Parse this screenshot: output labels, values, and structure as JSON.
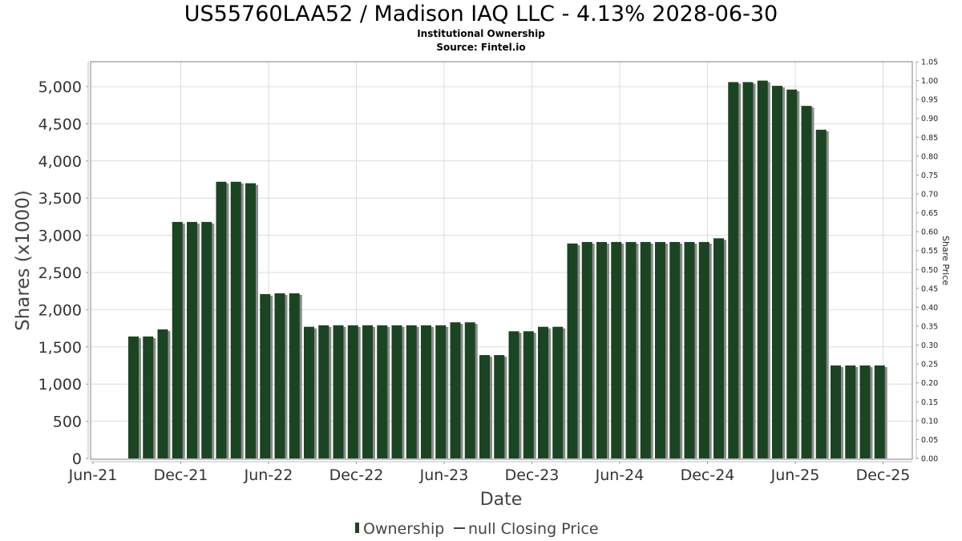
{
  "chart_data": {
    "type": "bar",
    "title": "US55760LAA52 / Madison IAQ LLC - 4.13% 2028-06-30",
    "subtitle": "Institutional Ownership",
    "source": "Source: Fintel.io",
    "xlabel": "Date",
    "ylabel": "Shares (x1000)",
    "y2label": "Share Price",
    "ylim": [
      0,
      5333
    ],
    "y2lim": [
      0,
      1.05
    ],
    "yticks": [
      0,
      500,
      1000,
      1500,
      2000,
      2500,
      3000,
      3500,
      4000,
      4500,
      5000
    ],
    "ytick_labels": [
      "0",
      "500",
      "1,000",
      "1,500",
      "2,000",
      "2,500",
      "3,000",
      "3,500",
      "4,000",
      "4,500",
      "5,000"
    ],
    "y2tick_labels": [
      "0.00",
      "0.05",
      "0.10",
      "0.15",
      "0.20",
      "0.25",
      "0.30",
      "0.35",
      "0.40",
      "0.45",
      "0.50",
      "0.55",
      "0.60",
      "0.65",
      "0.70",
      "0.75",
      "0.80",
      "0.85",
      "0.90",
      "0.95",
      "1.00",
      "1.05"
    ],
    "xtick_labels": [
      "Jun-21",
      "Dec-21",
      "Jun-22",
      "Dec-22",
      "Jun-23",
      "Dec-23",
      "Jun-24",
      "Dec-24",
      "Jun-25",
      "Dec-25"
    ],
    "grid": true,
    "legend_position": "bottom",
    "series": [
      {
        "name": "Ownership",
        "color": "#1b4522",
        "values": [
          1640,
          1640,
          1735,
          3180,
          3180,
          3180,
          3720,
          3720,
          3700,
          2210,
          2220,
          2220,
          1770,
          1790,
          1790,
          1790,
          1790,
          1790,
          1790,
          1790,
          1790,
          1790,
          1830,
          1830,
          1390,
          1390,
          1710,
          1710,
          1770,
          1770,
          2890,
          2910,
          2910,
          2910,
          2910,
          2910,
          2910,
          2910,
          2910,
          2910,
          2960,
          5060,
          5060,
          5080,
          5010,
          4960,
          4740,
          4420,
          1250,
          1250,
          1250,
          1250
        ]
      }
    ],
    "legend": [
      {
        "label": "Ownership",
        "symbol": "bar",
        "color": "#1b4522"
      },
      {
        "label": "null Closing Price",
        "symbol": "line",
        "color": "#444444"
      }
    ]
  }
}
